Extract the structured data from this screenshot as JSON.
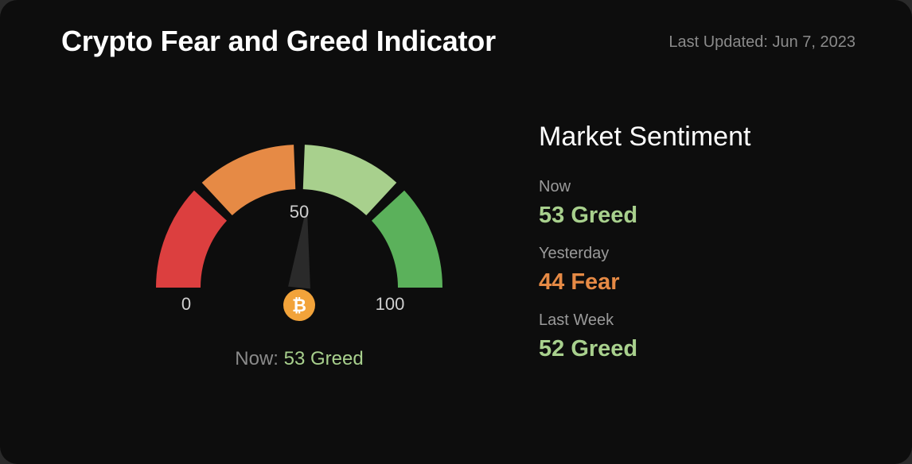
{
  "header": {
    "title": "Crypto Fear and Greed Indicator",
    "last_updated": "Last Updated: Jun 7, 2023"
  },
  "gauge": {
    "min_label": "0",
    "mid_label": "50",
    "max_label": "100",
    "value": 53,
    "min": 0,
    "max": 100,
    "icon": "bitcoin-icon",
    "icon_glyph": "₿",
    "segments": [
      {
        "from": 0,
        "to": 25,
        "color": "#dc3f3f"
      },
      {
        "from": 25,
        "to": 50,
        "color": "#e68a45"
      },
      {
        "from": 50,
        "to": 75,
        "color": "#a8d08d"
      },
      {
        "from": 75,
        "to": 100,
        "color": "#5bb15b"
      }
    ],
    "needle_color": "#2a2a2a",
    "icon_color": "#f2a33a"
  },
  "now_caption": {
    "label": "Now:",
    "value": "53 Greed"
  },
  "sentiment": {
    "heading": "Market Sentiment",
    "rows": [
      {
        "label": "Now",
        "value": "53 Greed",
        "tone": "green"
      },
      {
        "label": "Yesterday",
        "value": "44 Fear",
        "tone": "orange"
      },
      {
        "label": "Last Week",
        "value": "52 Greed",
        "tone": "green"
      }
    ]
  },
  "colors": {
    "greed": "#a8d08d",
    "fear": "#e68a45",
    "background": "#0d0d0d"
  }
}
